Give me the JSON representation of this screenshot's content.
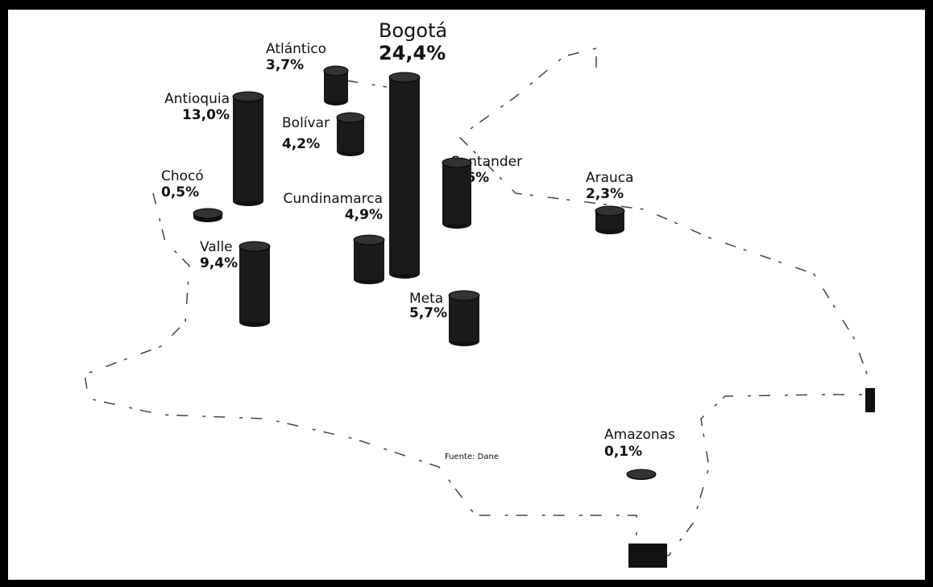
{
  "regions": [
    {
      "name": "Atlántico",
      "value": 3.7,
      "value_label": "3,7%"
    },
    {
      "name": "Bogotá",
      "value": 24.4,
      "value_label": "24,4%"
    },
    {
      "name": "Antioquia",
      "value": 13.0,
      "value_label": "13,0%"
    },
    {
      "name": "Bolívar",
      "value": 4.2,
      "value_label": "4,2%"
    },
    {
      "name": "Chocó",
      "value": 0.5,
      "value_label": "0,5%"
    },
    {
      "name": "Cundinamarca",
      "value": 4.9,
      "value_label": "4,9%"
    },
    {
      "name": "Santander",
      "value": 7.6,
      "value_label": "7,6%"
    },
    {
      "name": "Arauca",
      "value": 2.3,
      "value_label": "2,3%"
    },
    {
      "name": "Valle",
      "value": 9.4,
      "value_label": "9,4%"
    },
    {
      "name": "Meta",
      "value": 5.7,
      "value_label": "5,7%"
    },
    {
      "name": "Amazonas",
      "value": 0.1,
      "value_label": "0,1%"
    }
  ],
  "source": "Fuente: Dane"
}
